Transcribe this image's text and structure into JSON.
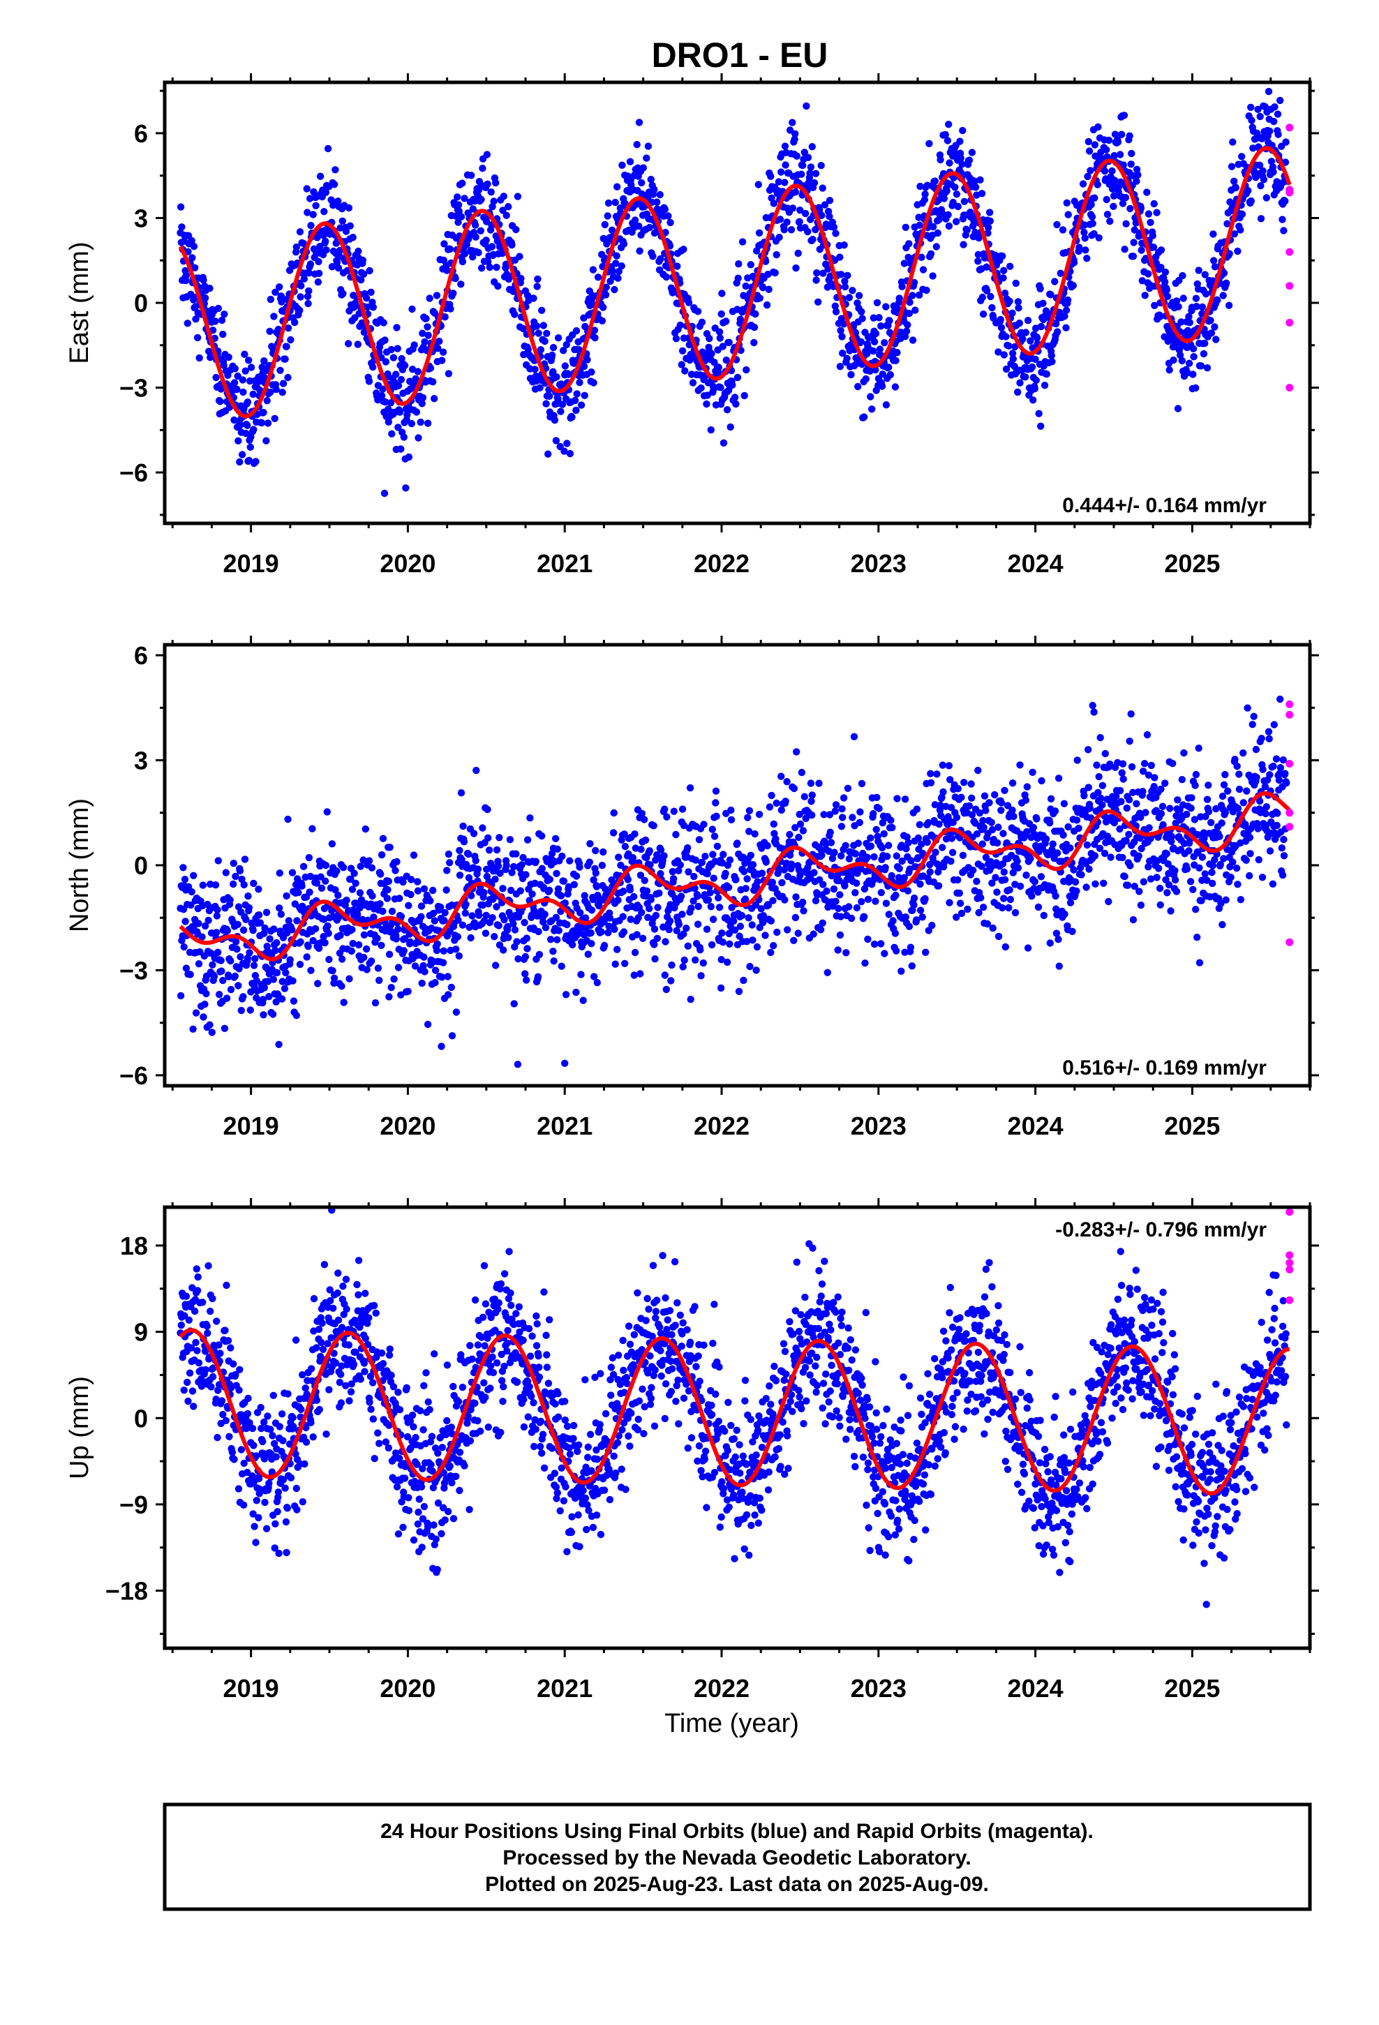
{
  "title": "DRO1 - EU",
  "chart_data": [
    {
      "type": "scatter",
      "panel": "east",
      "ylabel": "East (mm)",
      "xlim": [
        2018.45,
        2025.75
      ],
      "ylim": [
        -7.8,
        7.8
      ],
      "yticks": [
        -6,
        -3,
        0,
        3,
        6
      ],
      "ytick_labels": [
        "−6",
        "−3",
        "0",
        "3",
        "6"
      ],
      "xticks": [
        2019,
        2020,
        2021,
        2022,
        2023,
        2024,
        2025
      ],
      "xtick_labels": [
        "2019",
        "2020",
        "2021",
        "2022",
        "2023",
        "2024",
        "2025"
      ],
      "rate_text": "0.444+/- 0.164 mm/yr",
      "model": {
        "t0": 2018.55,
        "t1": 2025.62,
        "offset": -0.9,
        "rate": 0.444,
        "amp": 3.3,
        "phase": 2018.22
      },
      "noise": 1.0,
      "final_orbits": {
        "t_start": 2018.55,
        "t_end": 2025.6,
        "n": 2450
      },
      "rapid_orbits": {
        "t": 2025.62,
        "values": [
          6.2,
          4.0,
          3.9,
          1.8,
          0.6,
          -0.7,
          -3.0
        ]
      },
      "final_color": "#0000ff",
      "rapid_color": "#ff00ff",
      "model_color": "#ff0000"
    },
    {
      "type": "scatter",
      "panel": "north",
      "ylabel": "North (mm)",
      "xlim": [
        2018.45,
        2025.75
      ],
      "ylim": [
        -6.3,
        6.3
      ],
      "yticks": [
        -6,
        -3,
        0,
        3,
        6
      ],
      "ytick_labels": [
        "−6",
        "−3",
        "0",
        "3",
        "6"
      ],
      "xticks": [
        2019,
        2020,
        2021,
        2022,
        2023,
        2024,
        2025
      ],
      "xtick_labels": [
        "2019",
        "2020",
        "2021",
        "2022",
        "2023",
        "2024",
        "2025"
      ],
      "rate_text": "0.516+/- 0.169 mm/yr",
      "model": {
        "t0": 2018.55,
        "t1": 2025.62,
        "offset": -2.25,
        "rate": 0.516,
        "amp": 0.5,
        "phase": 2018.3,
        "amp2": 0.35
      },
      "noise": 1.1,
      "final_orbits": {
        "t_start": 2018.55,
        "t_end": 2025.6,
        "n": 2450
      },
      "rapid_orbits": {
        "t": 2025.62,
        "values": [
          4.6,
          4.3,
          2.9,
          1.5,
          1.1,
          -2.2
        ]
      },
      "final_color": "#0000ff",
      "rapid_color": "#ff00ff",
      "model_color": "#ff0000"
    },
    {
      "type": "scatter",
      "panel": "up",
      "ylabel": "Up (mm)",
      "xlim": [
        2018.45,
        2025.75
      ],
      "ylim": [
        -24,
        22
      ],
      "yticks": [
        -18,
        -9,
        0,
        9,
        18
      ],
      "ytick_labels": [
        "−18",
        "−9",
        "0",
        "9",
        "18"
      ],
      "xticks": [
        2019,
        2020,
        2021,
        2022,
        2023,
        2024,
        2025
      ],
      "xtick_labels": [
        "2019",
        "2020",
        "2021",
        "2022",
        "2023",
        "2024",
        "2025"
      ],
      "xlabel": "Time (year)",
      "rate_text": "-0.283+/- 0.796 mm/yr",
      "model": {
        "t0": 2018.55,
        "t1": 2025.62,
        "offset": 1.6,
        "rate": -0.283,
        "amp": 7.6,
        "phase": 2018.37
      },
      "noise": 3.8,
      "final_orbits": {
        "t_start": 2018.55,
        "t_end": 2025.6,
        "n": 2450
      },
      "rapid_orbits": {
        "t": 2025.62,
        "values": [
          21.5,
          17.0,
          16.2,
          15.5,
          12.3
        ]
      },
      "final_color": "#0000ff",
      "rapid_color": "#ff00ff",
      "model_color": "#ff0000"
    }
  ],
  "footer": {
    "line1": "24 Hour Positions Using Final Orbits (blue) and Rapid Orbits (magenta).",
    "line2": "Processed by the Nevada Geodetic Laboratory.",
    "line3": "Plotted on 2025-Aug-23. Last data on 2025-Aug-09."
  }
}
